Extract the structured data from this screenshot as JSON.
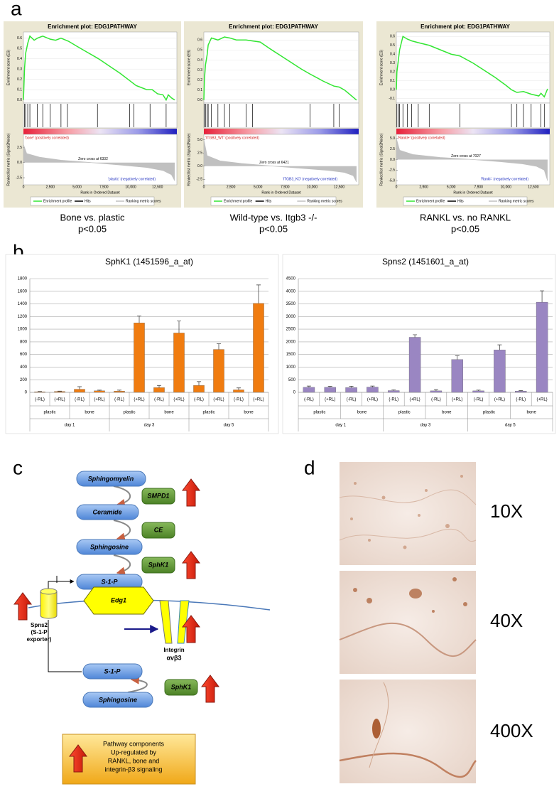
{
  "panel_labels": [
    "a",
    "b",
    "c",
    "d"
  ],
  "chart_data": [
    {
      "type": "gsea",
      "title": "Enrichment plot: EDG1PATHWAY",
      "ylabel": "Enrichment score (ES)",
      "y2label": "Ranked list metric (Signal2Noise)",
      "xlabel": "Rank in Ordered Dataset",
      "xlim": [
        0,
        14300
      ],
      "xticks": [
        0,
        {
          "value": 2500,
          "label": "2,500"
        },
        {
          "value": 5000,
          "label": "5,000"
        },
        {
          "value": 7500,
          "label": "7,500"
        },
        {
          "value": 10000,
          "label": "10,000"
        },
        {
          "value": 12500,
          "label": "12,500"
        }
      ],
      "ylim": [
        -0.03,
        0.66
      ],
      "yticks": [
        {
          "value": 0,
          "label": "0.0"
        },
        0.1,
        0.2,
        0.3,
        0.4,
        0.5,
        0.6
      ],
      "y2lim": [
        -3.2,
        4.2
      ],
      "y2ticks": [
        2.5,
        {
          "value": 0,
          "label": "0.0"
        },
        -2.5
      ],
      "series": [
        {
          "name": "Enrichment profile",
          "color": "#33e633",
          "x": [
            0,
            100,
            200,
            400,
            600,
            1000,
            1300,
            1800,
            2500,
            3000,
            3500,
            4200,
            5000,
            6000,
            7000,
            8000,
            9000,
            10000,
            10500,
            11000,
            11500,
            12000,
            12500,
            13000,
            13300,
            13500,
            13800,
            14100
          ],
          "values": [
            0,
            0.3,
            0.45,
            0.55,
            0.62,
            0.58,
            0.6,
            0.62,
            0.59,
            0.58,
            0.6,
            0.57,
            0.52,
            0.46,
            0.4,
            0.33,
            0.26,
            0.18,
            0.14,
            0.12,
            0.1,
            0.1,
            0.06,
            0.05,
            0,
            0.05,
            0.02,
            0
          ]
        },
        {
          "name": "Hits",
          "color": "#000000",
          "x": [
            100,
            200,
            400,
            600,
            1300,
            1800,
            2500,
            3500,
            4100,
            6900,
            9900,
            10300,
            11800,
            13300
          ]
        },
        {
          "name": "Ranking metric scores",
          "color": "#c0c0c0",
          "axis": "y2",
          "x": [
            0,
            300,
            1500,
            3500,
            6332,
            9000,
            11500,
            13000,
            13800,
            14100
          ],
          "values": [
            3.0,
            1.5,
            0.9,
            0.4,
            0,
            -0.4,
            -0.8,
            -1.3,
            -2.0,
            -3.0
          ]
        }
      ],
      "annotations": [
        "'bone' (positively correlated)",
        "Zero cross at 6332",
        "'plastic' (negatively correlated)"
      ],
      "caption": [
        "Bone vs. plastic",
        "p<0.05"
      ]
    },
    {
      "type": "gsea",
      "title": "Enrichment plot: EDG1PATHWAY",
      "ylabel": "Enrichment score (ES)",
      "y2label": "Ranked list metric (Signal2Noise)",
      "xlabel": "Rank in Ordered Dataset",
      "xlim": [
        0,
        14300
      ],
      "xticks": [
        0,
        {
          "value": 2500,
          "label": "2,500"
        },
        {
          "value": 5000,
          "label": "5,000"
        },
        {
          "value": 7500,
          "label": "7,500"
        },
        {
          "value": 10000,
          "label": "10,000"
        },
        {
          "value": 12500,
          "label": "12,500"
        }
      ],
      "ylim": [
        -0.03,
        0.68
      ],
      "yticks": [
        {
          "value": 0,
          "label": "0.0"
        },
        0.1,
        0.2,
        0.3,
        0.4,
        0.5,
        0.6
      ],
      "y2lim": [
        -3.0,
        5.5
      ],
      "y2ticks": [
        {
          "value": 5,
          "label": "5.0"
        },
        2.5,
        {
          "value": 0,
          "label": "0.0"
        },
        -2.5
      ],
      "series": [
        {
          "name": "Enrichment profile",
          "color": "#33e633",
          "x": [
            0,
            50,
            150,
            300,
            400,
            700,
            1300,
            1900,
            2400,
            3000,
            3900,
            4500,
            5200,
            6000,
            7000,
            8000,
            9000,
            9800,
            10500,
            11000,
            12000,
            12500,
            13000,
            14100
          ],
          "values": [
            0,
            0.2,
            0.35,
            0.45,
            0.55,
            0.62,
            0.6,
            0.63,
            0.62,
            0.6,
            0.6,
            0.59,
            0.58,
            0.52,
            0.45,
            0.38,
            0.31,
            0.26,
            0.22,
            0.19,
            0.14,
            0.13,
            0.1,
            0
          ]
        },
        {
          "name": "Hits",
          "color": "#000000",
          "x": [
            50,
            150,
            300,
            400,
            700,
            1300,
            1900,
            2400,
            3900,
            4500,
            9800,
            12000,
            12500
          ]
        },
        {
          "name": "Ranking metric scores",
          "color": "#c0c0c0",
          "axis": "y2",
          "x": [
            0,
            300,
            1500,
            3500,
            6421,
            9000,
            11500,
            13000,
            13800,
            14100
          ],
          "values": [
            5.0,
            2.0,
            1.0,
            0.5,
            0,
            -0.4,
            -0.8,
            -1.2,
            -1.8,
            -3.0
          ]
        }
      ],
      "annotations": [
        "'ITGB3_WT' (positively correlated)",
        "Zero cross at 6421",
        "'ITGB3_KO' (negatively correlated)"
      ],
      "caption": [
        "Wild-type vs. Itgb3 -/-",
        "p<0.05"
      ]
    },
    {
      "type": "gsea",
      "title": "Enrichment plot: EDG1PATHWAY",
      "ylabel": "Enrichment score (ES)",
      "y2label": "Ranked list metric (Signal2Noise)",
      "xlabel": "Rank in Ordered Dataset",
      "xlim": [
        0,
        14000
      ],
      "xticks": [
        0,
        {
          "value": 2500,
          "label": "2,500"
        },
        {
          "value": 5000,
          "label": "5,000"
        },
        {
          "value": 7500,
          "label": "7,500"
        },
        {
          "value": 10000,
          "label": "10,000"
        },
        {
          "value": 12500,
          "label": "12,500"
        }
      ],
      "ylim": [
        -0.15,
        0.65
      ],
      "yticks": [
        -0.1,
        {
          "value": 0,
          "label": "0.0"
        },
        0.1,
        0.2,
        0.3,
        0.4,
        0.5,
        0.6
      ],
      "y2lim": [
        -5.3,
        5.3
      ],
      "y2ticks": [
        {
          "value": 5,
          "label": "5.0"
        },
        2.5,
        {
          "value": 0,
          "label": "0.0"
        },
        -2.5,
        {
          "value": -5,
          "label": "-5.0"
        }
      ],
      "series": [
        {
          "name": "Enrichment profile",
          "color": "#33e633",
          "x": [
            0,
            50,
            200,
            300,
            600,
            1000,
            1400,
            2000,
            3000,
            4000,
            5000,
            5800,
            7000,
            8000,
            9000,
            10000,
            10500,
            11000,
            11600,
            12300,
            13000,
            13200,
            13500,
            13800
          ],
          "values": [
            0,
            0.2,
            0.35,
            0.45,
            0.6,
            0.57,
            0.55,
            0.53,
            0.5,
            0.45,
            0.4,
            0.38,
            0.3,
            0.22,
            0.14,
            0.05,
            0,
            -0.03,
            -0.02,
            -0.05,
            -0.07,
            -0.04,
            -0.08,
            0.01
          ]
        },
        {
          "name": "Hits",
          "color": "#000000",
          "x": [
            50,
            200,
            300,
            600,
            1000,
            1400,
            2000,
            3000,
            5800,
            10500,
            11000,
            11600,
            12300,
            13200,
            13500
          ]
        },
        {
          "name": "Ranking metric scores",
          "color": "#c0c0c0",
          "axis": "y2",
          "x": [
            0,
            300,
            1500,
            4000,
            7027,
            9500,
            11500,
            12800,
            13500,
            13800
          ],
          "values": [
            5.0,
            2.2,
            1.2,
            0.5,
            0,
            -0.5,
            -1.0,
            -1.6,
            -2.5,
            -5.0
          ]
        }
      ],
      "annotations": [
        "'Rankl+' (positively correlated)",
        "Zero cross at 7027",
        "'Rankl-' (negatively correlated)"
      ],
      "caption": [
        "RANKL vs. no RANKL",
        "p<0.05"
      ]
    },
    {
      "type": "bar",
      "title": "SphK1 (1451596_a_at)",
      "categories": [
        "(-RL)",
        "(+RL)",
        "(-RL)",
        "(+RL)",
        "(-RL)",
        "(+RL)",
        "(-RL)",
        "(+RL)",
        "(-RL)",
        "(+RL)",
        "(-RL)",
        "(+RL)"
      ],
      "groups": [
        "plastic",
        "bone",
        "plastic",
        "bone",
        "plastic",
        "bone"
      ],
      "days": [
        "day 1",
        "day 3",
        "day 5"
      ],
      "ylim": [
        0,
        1800
      ],
      "yticks": [
        0,
        200,
        400,
        600,
        800,
        1000,
        1200,
        1400,
        1600,
        1800
      ],
      "grid": true,
      "series": [
        {
          "color": "#f07c10",
          "values": [
            10,
            15,
            50,
            25,
            20,
            1100,
            75,
            940,
            110,
            680,
            40,
            1410
          ],
          "errors": [
            5,
            5,
            40,
            10,
            15,
            110,
            35,
            190,
            60,
            90,
            30,
            290
          ]
        }
      ]
    },
    {
      "type": "bar",
      "title": "Spns2 (1451601_a_at)",
      "categories": [
        "(-RL)",
        "(+RL)",
        "(-RL)",
        "(+RL)",
        "(-RL)",
        "(+RL)",
        "(-RL)",
        "(+RL)",
        "(-RL)",
        "(+RL)",
        "(-RL)",
        "(+RL)"
      ],
      "groups": [
        "plastic",
        "bone",
        "plastic",
        "bone",
        "plastic",
        "bone"
      ],
      "days": [
        "day 1",
        "day 3",
        "day 5"
      ],
      "ylim": [
        0,
        4500
      ],
      "yticks": [
        0,
        500,
        1000,
        1500,
        2000,
        2500,
        3000,
        3500,
        4000,
        4500
      ],
      "grid": true,
      "series": [
        {
          "color": "#9a86c2",
          "values": [
            200,
            200,
            190,
            210,
            70,
            2180,
            60,
            1300,
            60,
            1680,
            50,
            3570
          ],
          "errors": [
            50,
            40,
            50,
            40,
            30,
            100,
            50,
            150,
            30,
            200,
            20,
            450
          ]
        }
      ]
    }
  ],
  "diagram": {
    "nodes": [
      "Sphingomyelin",
      "Ceramide",
      "Sphingosine",
      "S-1-P",
      "S-1-P",
      "Sphingosine"
    ],
    "enzymes": [
      "SMPD1",
      "CE",
      "SphK1",
      "SphK1"
    ],
    "receptor": "Edg1",
    "exporter": [
      "Spns2",
      "(S-1-P",
      "exporter)"
    ],
    "integrin": [
      "Integrin",
      "αvβ3"
    ],
    "legend": [
      "Pathway components",
      "Up-regulated by",
      "RANKL, bone and",
      "integrin-β3 signaling"
    ]
  },
  "micrographs": [
    "10X",
    "40X",
    "400X"
  ]
}
